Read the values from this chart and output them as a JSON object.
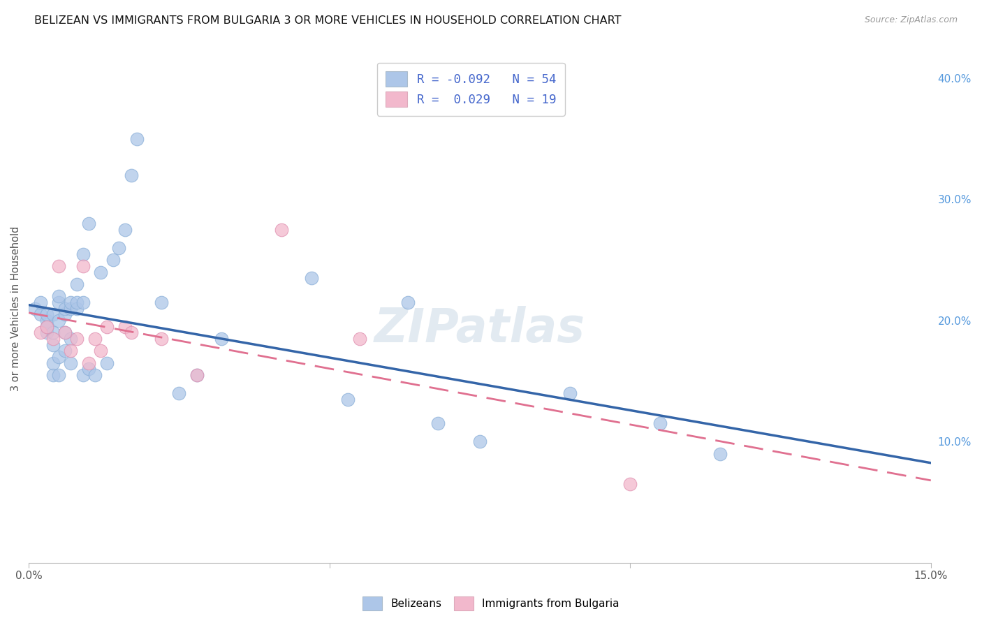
{
  "title": "BELIZEAN VS IMMIGRANTS FROM BULGARIA 3 OR MORE VEHICLES IN HOUSEHOLD CORRELATION CHART",
  "source": "Source: ZipAtlas.com",
  "ylabel": "3 or more Vehicles in Household",
  "xlim": [
    0.0,
    0.15
  ],
  "ylim": [
    0.0,
    0.42
  ],
  "xtick_positions": [
    0.0,
    0.05,
    0.1,
    0.15
  ],
  "xtick_labels": [
    "0.0%",
    "",
    "",
    "15.0%"
  ],
  "yticks_right": [
    0.0,
    0.1,
    0.2,
    0.3,
    0.4
  ],
  "ytick_labels_right": [
    "",
    "10.0%",
    "20.0%",
    "30.0%",
    "40.0%"
  ],
  "legend_r_blue": "-0.092",
  "legend_n_blue": "54",
  "legend_r_pink": "0.029",
  "legend_n_pink": "19",
  "blue_color": "#adc6e8",
  "pink_color": "#f2b8cc",
  "blue_line_color": "#3465a8",
  "pink_line_color": "#e07090",
  "watermark": "ZIPatlas",
  "blue_x": [
    0.001,
    0.002,
    0.002,
    0.003,
    0.003,
    0.003,
    0.003,
    0.003,
    0.004,
    0.004,
    0.004,
    0.004,
    0.004,
    0.005,
    0.005,
    0.005,
    0.005,
    0.005,
    0.006,
    0.006,
    0.006,
    0.006,
    0.007,
    0.007,
    0.007,
    0.007,
    0.008,
    0.008,
    0.008,
    0.009,
    0.009,
    0.009,
    0.01,
    0.01,
    0.011,
    0.012,
    0.013,
    0.014,
    0.015,
    0.016,
    0.017,
    0.018,
    0.022,
    0.025,
    0.028,
    0.032,
    0.047,
    0.053,
    0.063,
    0.068,
    0.075,
    0.09,
    0.105,
    0.115
  ],
  "blue_y": [
    0.21,
    0.205,
    0.215,
    0.19,
    0.195,
    0.2,
    0.195,
    0.205,
    0.155,
    0.165,
    0.18,
    0.19,
    0.205,
    0.155,
    0.17,
    0.2,
    0.215,
    0.22,
    0.175,
    0.19,
    0.205,
    0.21,
    0.165,
    0.185,
    0.21,
    0.215,
    0.21,
    0.215,
    0.23,
    0.155,
    0.215,
    0.255,
    0.28,
    0.16,
    0.155,
    0.24,
    0.165,
    0.25,
    0.26,
    0.275,
    0.32,
    0.35,
    0.215,
    0.14,
    0.155,
    0.185,
    0.235,
    0.135,
    0.215,
    0.115,
    0.1,
    0.14,
    0.115,
    0.09
  ],
  "pink_x": [
    0.002,
    0.003,
    0.004,
    0.005,
    0.006,
    0.007,
    0.008,
    0.009,
    0.01,
    0.011,
    0.012,
    0.013,
    0.016,
    0.017,
    0.022,
    0.028,
    0.042,
    0.055,
    0.1
  ],
  "pink_y": [
    0.19,
    0.195,
    0.185,
    0.245,
    0.19,
    0.175,
    0.185,
    0.245,
    0.165,
    0.185,
    0.175,
    0.195,
    0.195,
    0.19,
    0.185,
    0.155,
    0.275,
    0.185,
    0.065
  ]
}
